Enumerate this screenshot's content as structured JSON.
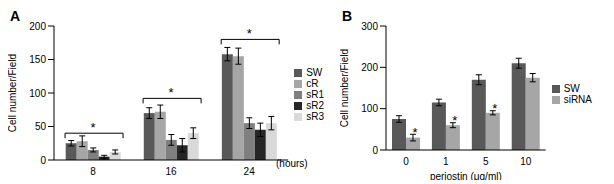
{
  "chart_data": [
    {
      "type": "bar",
      "title": "A",
      "categories": [
        8,
        16,
        24
      ],
      "x_label": "(hours)",
      "y_label": "Cell number/Field",
      "ylim": [
        0,
        200
      ],
      "yticks": [
        0,
        50,
        100,
        150,
        200
      ],
      "legend": "right",
      "series": [
        {
          "name": "SW",
          "color": "#595959",
          "values": [
            25,
            70,
            158
          ],
          "errors": [
            4,
            8,
            10
          ]
        },
        {
          "name": "cR",
          "color": "#a6a6a6",
          "values": [
            28,
            72,
            155
          ],
          "errors": [
            8,
            10,
            12
          ]
        },
        {
          "name": "sR1",
          "color": "#7f7f7f",
          "values": [
            15,
            30,
            55
          ],
          "errors": [
            3,
            8,
            8
          ]
        },
        {
          "name": "sR2",
          "color": "#262626",
          "values": [
            5,
            22,
            45
          ],
          "errors": [
            2,
            10,
            10
          ]
        },
        {
          "name": "sR3",
          "color": "#d9d9d9",
          "values": [
            12,
            40,
            55
          ],
          "errors": [
            3,
            8,
            10
          ]
        }
      ],
      "annotations": [
        {
          "text": "*",
          "x": 8,
          "y": 40
        },
        {
          "text": "*",
          "x": 16,
          "y": 92
        },
        {
          "text": "*",
          "x": 24,
          "y": 180
        }
      ]
    },
    {
      "type": "bar",
      "title": "B",
      "categories": [
        0,
        1,
        5,
        10
      ],
      "x_label": "periostin (μg/ml)",
      "y_label": "Cell number/Field",
      "ylim": [
        0,
        300
      ],
      "yticks": [
        0,
        100,
        200,
        300
      ],
      "legend": "right",
      "series": [
        {
          "name": "SW",
          "color": "#595959",
          "values": [
            75,
            115,
            170,
            210
          ],
          "errors": [
            8,
            8,
            12,
            12
          ]
        },
        {
          "name": "siRNA",
          "color": "#a6a6a6",
          "values": [
            30,
            60,
            90,
            175
          ],
          "errors": [
            8,
            6,
            5,
            10
          ]
        }
      ],
      "annotations": [
        {
          "text": "*",
          "x": 0,
          "y": 42
        },
        {
          "text": "*",
          "x": 1,
          "y": 70
        },
        {
          "text": "*",
          "x": 5,
          "y": 100
        }
      ]
    }
  ]
}
